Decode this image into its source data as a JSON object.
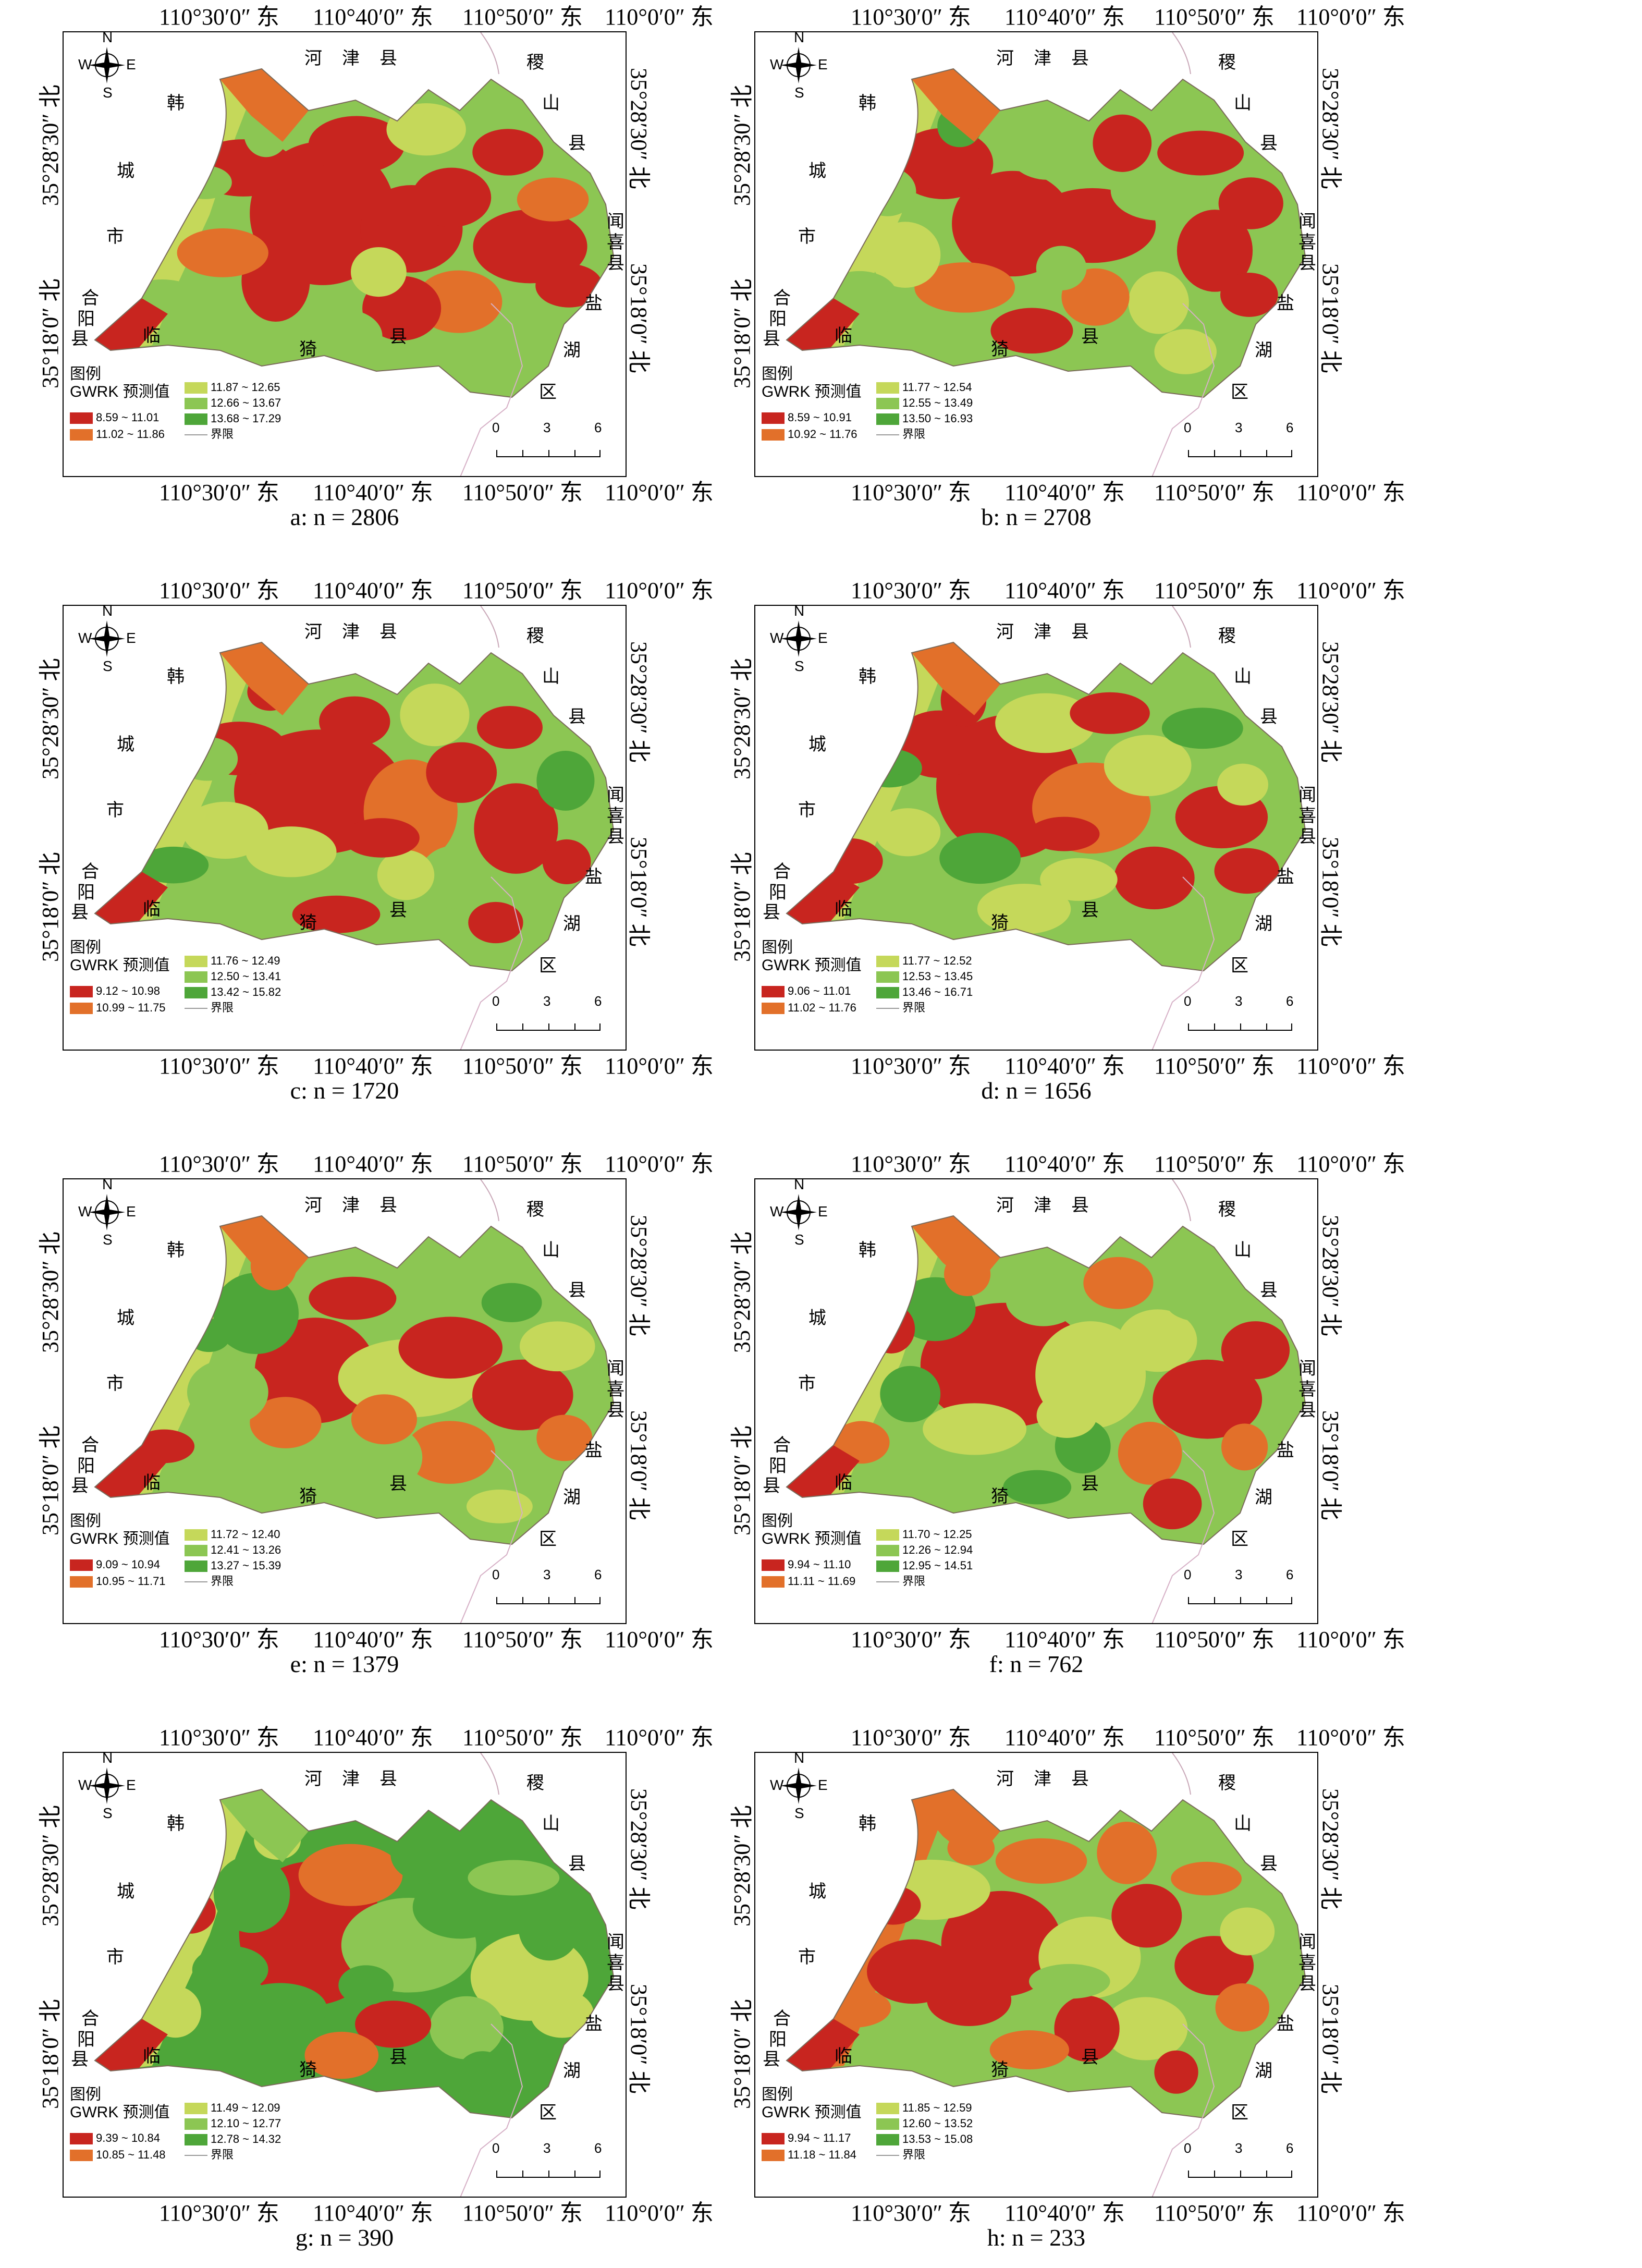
{
  "axes": {
    "top_lon": [
      "110°30′0″ 东",
      "110°40′0″ 东",
      "110°50′0″ 东",
      "110°0′0″ 东"
    ],
    "bottom_lon": [
      "110°30′0″ 东",
      "110°40′0″ 东",
      "110°50′0″ 东",
      "110°0′0″ 东"
    ],
    "lat_upper": "35°28′30″ 北",
    "lat_lower": "35°18′0″ 北"
  },
  "compass": {
    "n": "N",
    "s": "S",
    "w": "W",
    "e": "E"
  },
  "place_labels": {
    "hejin": [
      "河",
      "津",
      "县"
    ],
    "jishan": [
      "稷",
      "山",
      "县"
    ],
    "hancheng": [
      "韩",
      "城",
      "市"
    ],
    "wenxi": [
      "闻",
      "喜",
      "县"
    ],
    "yanhu": [
      "盐",
      "湖",
      "区"
    ],
    "heyang": [
      "合",
      "阳",
      "县"
    ],
    "linyi": [
      "临",
      "猗",
      "县"
    ]
  },
  "legend": {
    "title": "图例",
    "subtitle": "GWRK 预测值",
    "boundary_label": "界限"
  },
  "scale": {
    "labels": [
      "0",
      "3",
      "6"
    ]
  },
  "colors": {
    "class1": "#c8251f",
    "class2": "#e2702a",
    "class3": "#c5d85a",
    "class4": "#8cc653",
    "class5": "#4ea639"
  },
  "panels": [
    {
      "caption": "a: n = 2806",
      "classes": [
        "8.59 ~ 11.01",
        "11.02 ~ 11.86",
        "11.87 ~ 12.65",
        "12.66 ~ 13.67",
        "13.68 ~ 17.29"
      ]
    },
    {
      "caption": "b: n = 2708",
      "classes": [
        "8.59 ~ 10.91",
        "10.92 ~ 11.76",
        "11.77 ~ 12.54",
        "12.55 ~ 13.49",
        "13.50 ~ 16.93"
      ]
    },
    {
      "caption": "c: n = 1720",
      "classes": [
        "9.12 ~ 10.98",
        "10.99 ~ 11.75",
        "11.76 ~ 12.49",
        "12.50 ~ 13.41",
        "13.42 ~ 15.82"
      ]
    },
    {
      "caption": "d: n = 1656",
      "classes": [
        "9.06 ~ 11.01",
        "11.02 ~ 11.76",
        "11.77 ~ 12.52",
        "12.53 ~ 13.45",
        "13.46 ~ 16.71"
      ]
    },
    {
      "caption": "e: n = 1379",
      "classes": [
        "9.09 ~ 10.94",
        "10.95 ~ 11.71",
        "11.72 ~ 12.40",
        "12.41 ~ 13.26",
        "13.27 ~ 15.39"
      ]
    },
    {
      "caption": "f: n = 762",
      "classes": [
        "9.94 ~ 11.10",
        "11.11 ~ 11.69",
        "11.70 ~ 12.25",
        "12.26 ~ 12.94",
        "12.95 ~ 14.51"
      ]
    },
    {
      "caption": "g: n = 390",
      "classes": [
        "9.39 ~ 10.84",
        "10.85 ~ 11.48",
        "11.49 ~ 12.09",
        "12.10 ~ 12.77",
        "12.78 ~ 14.32"
      ]
    },
    {
      "caption": "h: n = 233",
      "classes": [
        "9.94 ~ 11.17",
        "11.18 ~ 11.84",
        "11.85 ~ 12.59",
        "12.60 ~ 13.52",
        "13.53 ~ 15.08"
      ]
    }
  ]
}
